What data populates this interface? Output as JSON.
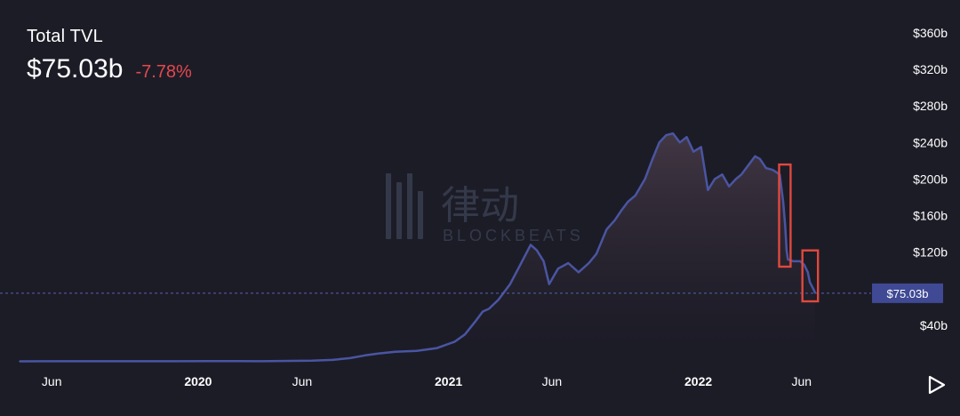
{
  "header": {
    "title": "Total TVL",
    "current_value": "$75.03b",
    "change": "-7.78%"
  },
  "watermark": {
    "brand_cn": "律动",
    "brand_en": "BLOCKBEATS"
  },
  "current_marker": {
    "label": "$75.03b",
    "value": 75.03
  },
  "colors": {
    "background": "#1c1c27",
    "line": "#4a55a2",
    "change_negative": "#e5484d",
    "highlight_box": "#e0493e",
    "marker_bg": "#3f4994"
  },
  "controls": {
    "play_icon": "play-icon"
  },
  "chart_data": {
    "type": "area",
    "title": "Total TVL",
    "xlabel": "",
    "ylabel": "",
    "ylim": [
      0,
      380
    ],
    "yticks": [
      {
        "value": 40,
        "label": "$40b"
      },
      {
        "value": 80,
        "label": ""
      },
      {
        "value": 120,
        "label": "$120b"
      },
      {
        "value": 160,
        "label": "$160b"
      },
      {
        "value": 200,
        "label": "$200b"
      },
      {
        "value": 240,
        "label": "$240b"
      },
      {
        "value": 280,
        "label": "$280b"
      },
      {
        "value": 320,
        "label": "$320b"
      },
      {
        "value": 360,
        "label": "$360b"
      }
    ],
    "xticks": [
      {
        "date": "2019-06-01",
        "label": "Jun"
      },
      {
        "date": "2020-01-01",
        "label": "2020"
      },
      {
        "date": "2020-06-01",
        "label": "Jun"
      },
      {
        "date": "2021-01-01",
        "label": "2021"
      },
      {
        "date": "2021-06-01",
        "label": "Jun"
      },
      {
        "date": "2022-01-01",
        "label": "2022"
      },
      {
        "date": "2022-06-01",
        "label": "Jun"
      }
    ],
    "xlim": [
      "2019-04-15",
      "2022-06-22"
    ],
    "grid": false,
    "series": [
      {
        "name": "",
        "x": [
          "2019-04-15",
          "2019-06-01",
          "2019-08-01",
          "2019-10-01",
          "2019-12-01",
          "2020-01-15",
          "2020-03-01",
          "2020-04-01",
          "2020-05-15",
          "2020-06-15",
          "2020-07-15",
          "2020-08-10",
          "2020-09-01",
          "2020-09-20",
          "2020-10-15",
          "2020-11-15",
          "2020-12-15",
          "2021-01-10",
          "2021-01-25",
          "2021-02-10",
          "2021-02-20",
          "2021-03-01",
          "2021-03-15",
          "2021-04-01",
          "2021-04-15",
          "2021-05-01",
          "2021-05-10",
          "2021-05-20",
          "2021-05-28",
          "2021-06-10",
          "2021-06-25",
          "2021-07-10",
          "2021-07-25",
          "2021-08-05",
          "2021-08-20",
          "2021-09-01",
          "2021-09-10",
          "2021-09-20",
          "2021-10-01",
          "2021-10-15",
          "2021-10-25",
          "2021-11-05",
          "2021-11-15",
          "2021-11-25",
          "2021-12-05",
          "2021-12-15",
          "2021-12-25",
          "2022-01-05",
          "2022-01-15",
          "2022-01-25",
          "2022-02-05",
          "2022-02-15",
          "2022-02-25",
          "2022-03-05",
          "2022-03-15",
          "2022-03-25",
          "2022-04-01",
          "2022-04-10",
          "2022-04-20",
          "2022-04-30",
          "2022-05-05",
          "2022-05-08",
          "2022-05-10",
          "2022-05-12",
          "2022-05-20",
          "2022-05-30",
          "2022-06-05",
          "2022-06-10",
          "2022-06-13",
          "2022-06-18",
          "2022-06-21"
        ],
        "values": [
          0.5,
          0.6,
          0.6,
          0.6,
          0.6,
          0.7,
          0.8,
          0.6,
          1.0,
          1.2,
          2.0,
          4.0,
          7.0,
          9.0,
          11.0,
          12.0,
          15.0,
          22.0,
          30.0,
          45.0,
          55.0,
          58.0,
          68.0,
          85.0,
          105.0,
          128.0,
          122.0,
          110.0,
          85.0,
          102.0,
          108.0,
          98.0,
          108.0,
          118.0,
          145.0,
          155.0,
          165.0,
          175.0,
          182.0,
          200.0,
          220.0,
          240.0,
          248.0,
          250.0,
          240.0,
          246.0,
          230.0,
          235.0,
          188.0,
          200.0,
          205.0,
          192.0,
          200.0,
          205.0,
          215.0,
          225.0,
          222.0,
          212.0,
          210.0,
          205.0,
          175.0,
          148.0,
          122.0,
          112.0,
          110.0,
          110.0,
          106.0,
          98.0,
          87.0,
          80.0,
          75.03
        ]
      }
    ]
  }
}
